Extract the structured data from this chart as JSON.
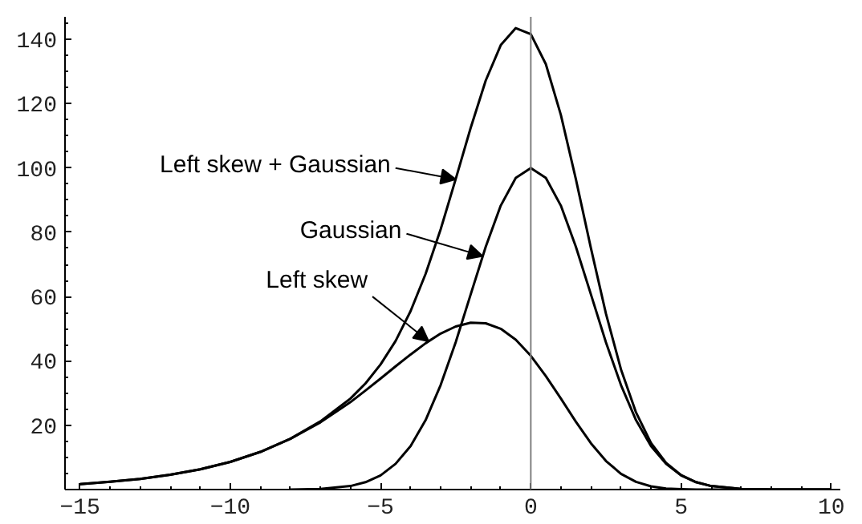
{
  "chart_data": {
    "type": "line",
    "xlim": [
      -15.5,
      10.3
    ],
    "ylim": [
      0,
      147
    ],
    "xticks": [
      -15,
      -10,
      -5,
      0,
      5,
      10
    ],
    "yticks": [
      20,
      40,
      60,
      80,
      100,
      120,
      140
    ],
    "line_style": "solid",
    "ref_lines": [
      {
        "axis": "x",
        "value": 0,
        "color": "#808080"
      }
    ],
    "annotations": [
      {
        "text": "Left skew + Gaussian",
        "x": -2.5,
        "y": 96.5
      },
      {
        "text": "Gaussian",
        "x": -1.6,
        "y": 72.6
      },
      {
        "text": "Left skew",
        "x": -3.4,
        "y": 46.1
      }
    ],
    "series": [
      {
        "color": "#000000",
        "x": [
          -15,
          -14,
          -13,
          -12,
          -11,
          -10,
          -9,
          -8,
          -7,
          -6,
          -5.5,
          -5,
          -4.5,
          -4,
          -3.5,
          -3,
          -2.5,
          -2,
          -1.5,
          -1,
          -0.5,
          0,
          0.5,
          1,
          1.5,
          2,
          2.5,
          3,
          3.5,
          4,
          4.5,
          5,
          5.5,
          6,
          7,
          8,
          9,
          10
        ],
        "values": [
          1.7,
          2.4,
          3.3,
          4.6,
          6.3,
          8.6,
          11.7,
          15.8,
          21.2,
          28.3,
          33.0,
          38.9,
          46.2,
          55.5,
          67.1,
          80.9,
          96.5,
          112.5,
          127.2,
          138.2,
          143.5,
          141.6,
          132.3,
          116.5,
          96.5,
          75.1,
          54.7,
          37.4,
          24.0,
          14.5,
          8.3,
          4.5,
          2.3,
          1.1,
          0.2,
          0,
          0,
          0
        ]
      },
      {
        "color": "#000000",
        "x": [
          -8,
          -7,
          -6,
          -5.5,
          -5,
          -4.5,
          -4,
          -3.5,
          -3,
          -2.5,
          -2,
          -1.5,
          -1,
          -0.5,
          0,
          0.5,
          1,
          1.5,
          2,
          2.5,
          3,
          3.5,
          4,
          4.5,
          5,
          5.5,
          6,
          7,
          8,
          9,
          10
        ],
        "values": [
          0,
          0.2,
          1.1,
          2.3,
          4.4,
          8.0,
          13.5,
          21.6,
          32.5,
          45.8,
          60.7,
          75.5,
          88.3,
          96.9,
          100,
          96.9,
          88.3,
          75.5,
          60.7,
          45.8,
          32.5,
          21.6,
          13.5,
          8.0,
          4.4,
          2.3,
          1.1,
          0.2,
          0,
          0,
          0
        ]
      },
      {
        "color": "#000000",
        "x": [
          -15,
          -14,
          -13,
          -12,
          -11,
          -10,
          -9,
          -8,
          -7,
          -6,
          -5.5,
          -5,
          -4.5,
          -4,
          -3.5,
          -3,
          -2.5,
          -2,
          -1.5,
          -1,
          -0.5,
          0,
          0.5,
          1,
          1.5,
          2,
          2.5,
          3,
          3.5,
          4,
          4.5,
          5,
          5.5,
          6,
          7,
          8,
          9,
          10
        ],
        "values": [
          1.7,
          2.4,
          3.3,
          4.6,
          6.3,
          8.6,
          11.7,
          15.8,
          20.9,
          27.2,
          30.8,
          34.5,
          38.3,
          42.0,
          45.5,
          48.5,
          50.7,
          51.9,
          51.7,
          50.0,
          46.6,
          41.6,
          35.3,
          28.3,
          21.1,
          14.4,
          8.9,
          4.9,
          2.4,
          1.0,
          0.3,
          0.1,
          0,
          0,
          0,
          0,
          0,
          0
        ]
      }
    ]
  }
}
